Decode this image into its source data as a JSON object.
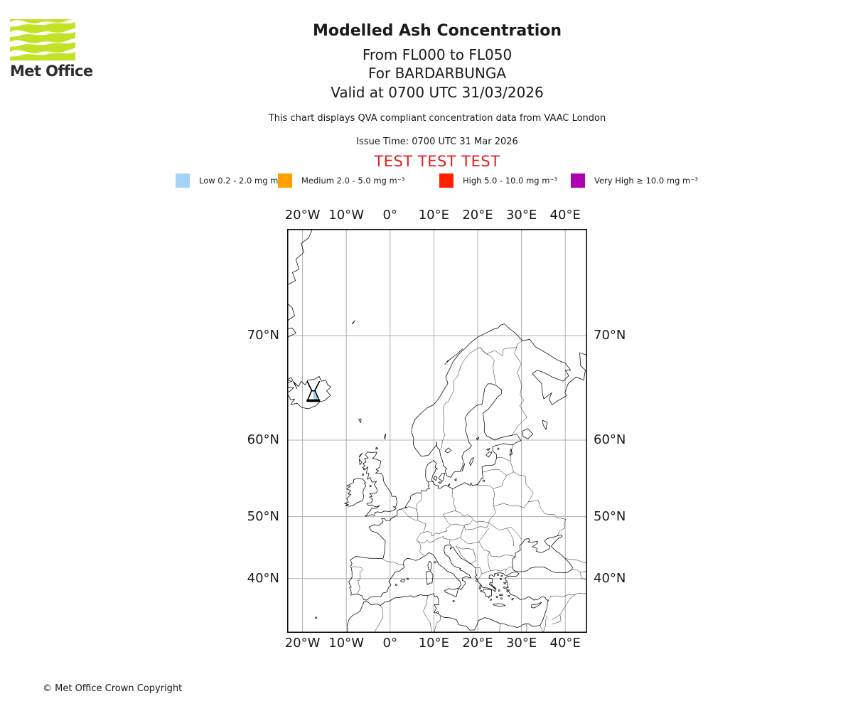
{
  "logo": {
    "brand": "Met Office",
    "green": "#c3e126"
  },
  "header": {
    "title": "Modelled Ash Concentration",
    "subtitle_fl": "From FL000 to FL050",
    "subtitle_volcano": "For BARDARBUNGA",
    "subtitle_valid": "Valid at 0700 UTC 31/03/2026",
    "description": "This chart displays QVA compliant concentration data from VAAC London",
    "issue_time": "Issue Time: 0700 UTC 31 Mar 2026",
    "test_banner": "TEST TEST TEST",
    "test_banner_color": "#e02020"
  },
  "legend": {
    "items": [
      {
        "label": "Low 0.2 - 2.0 mg m⁻³",
        "color": "#a6d2f5"
      },
      {
        "label": "Medium 2.0 - 5.0 mg m⁻³",
        "color": "#ffa000"
      },
      {
        "label": "High 5.0 - 10.0 mg m⁻³",
        "color": "#ff2000"
      },
      {
        "label": "Very High ≥ 10.0 mg m⁻³",
        "color": "#b000b5"
      }
    ]
  },
  "map": {
    "lon_ticks": [
      {
        "label": "20°W",
        "value": -20
      },
      {
        "label": "10°W",
        "value": -10
      },
      {
        "label": "0°",
        "value": 0
      },
      {
        "label": "10°E",
        "value": 10
      },
      {
        "label": "20°E",
        "value": 20
      },
      {
        "label": "30°E",
        "value": 30
      },
      {
        "label": "40°E",
        "value": 40
      }
    ],
    "lat_ticks": [
      {
        "label": "70°N",
        "value": 70
      },
      {
        "label": "60°N",
        "value": 60
      },
      {
        "label": "50°N",
        "value": 50
      },
      {
        "label": "40°N",
        "value": 40
      }
    ],
    "volcano": {
      "name": "BARDARBUNGA",
      "lon": -17.53,
      "lat": 64.64
    },
    "ash_color": "#a6d2f5"
  },
  "chart_data": {
    "type": "map",
    "title": "Modelled Ash Concentration",
    "projection": "mercator",
    "lon_range": [
      -23.5,
      45.0
    ],
    "lat_range": [
      29.9,
      76.9
    ],
    "lon_ticks": [
      -20,
      -10,
      0,
      10,
      20,
      30,
      40
    ],
    "lat_ticks": [
      70,
      60,
      50,
      40
    ],
    "grid": true,
    "legend_position": "top",
    "concentration_bins": [
      {
        "name": "Low",
        "range": "0.2 - 2.0 mg m⁻³",
        "color": "#a6d2f5"
      },
      {
        "name": "Medium",
        "range": "2.0 - 5.0 mg m⁻³",
        "color": "#ffa000"
      },
      {
        "name": "High",
        "range": "5.0 - 10.0 mg m⁻³",
        "color": "#ff2000"
      },
      {
        "name": "Very High",
        "range": "≥ 10.0 mg m⁻³",
        "color": "#b000b5"
      }
    ],
    "volcano": {
      "name": "BARDARBUNGA",
      "lon": -17.53,
      "lat": 64.64
    },
    "ash_patches": [
      {
        "level": "Low",
        "approx_center_lon": -17.1,
        "approx_center_lat": 64.7
      }
    ]
  },
  "footer": {
    "copyright": "© Met Office Crown Copyright"
  }
}
